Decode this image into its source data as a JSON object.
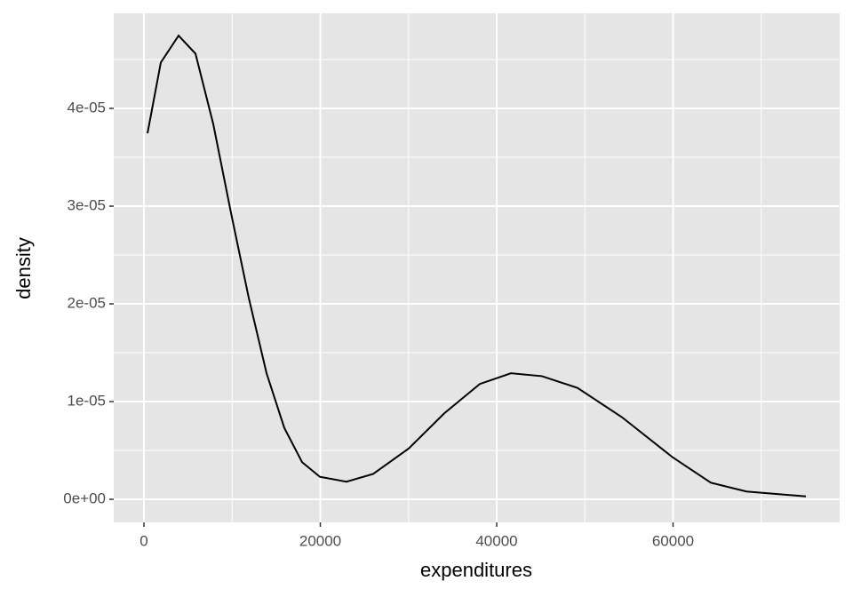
{
  "chart_data": {
    "type": "line",
    "xlabel": "expenditures",
    "ylabel": "density",
    "x": [
      403,
      1914,
      3929,
      5844,
      7859,
      9874,
      11889,
      13904,
      15919,
      17935,
      19950,
      22972,
      25995,
      30025,
      34055,
      38085,
      41612,
      45138,
      49169,
      54207,
      59950,
      64282,
      68312,
      75063
    ],
    "series": [
      {
        "color": "#000000",
        "values": [
          3.745e-05,
          4.47e-05,
          4.745e-05,
          4.56e-05,
          3.84e-05,
          2.93e-05,
          2.06e-05,
          1.29e-05,
          7.3e-06,
          3.8e-06,
          2.3e-06,
          1.8e-06,
          2.6e-06,
          5.2e-06,
          8.8e-06,
          1.18e-05,
          1.29e-05,
          1.26e-05,
          1.14e-05,
          8.4e-06,
          4.3e-06,
          1.7e-06,
          8e-07,
          3e-07
        ]
      }
    ],
    "xlim": [
      -3426,
      78892
    ],
    "xticks": [
      0,
      20000,
      40000,
      60000
    ],
    "ylim": [
      -2.36e-06,
      4.973e-05
    ],
    "yticks": [
      {
        "value": 0,
        "label": "0e+00"
      },
      {
        "value": 1e-05,
        "label": "1e-05"
      },
      {
        "value": 2e-05,
        "label": "2e-05"
      },
      {
        "value": 3e-05,
        "label": "3e-05"
      },
      {
        "value": 4e-05,
        "label": "4e-05"
      }
    ],
    "grid": true,
    "background": "#e5e5e5"
  }
}
